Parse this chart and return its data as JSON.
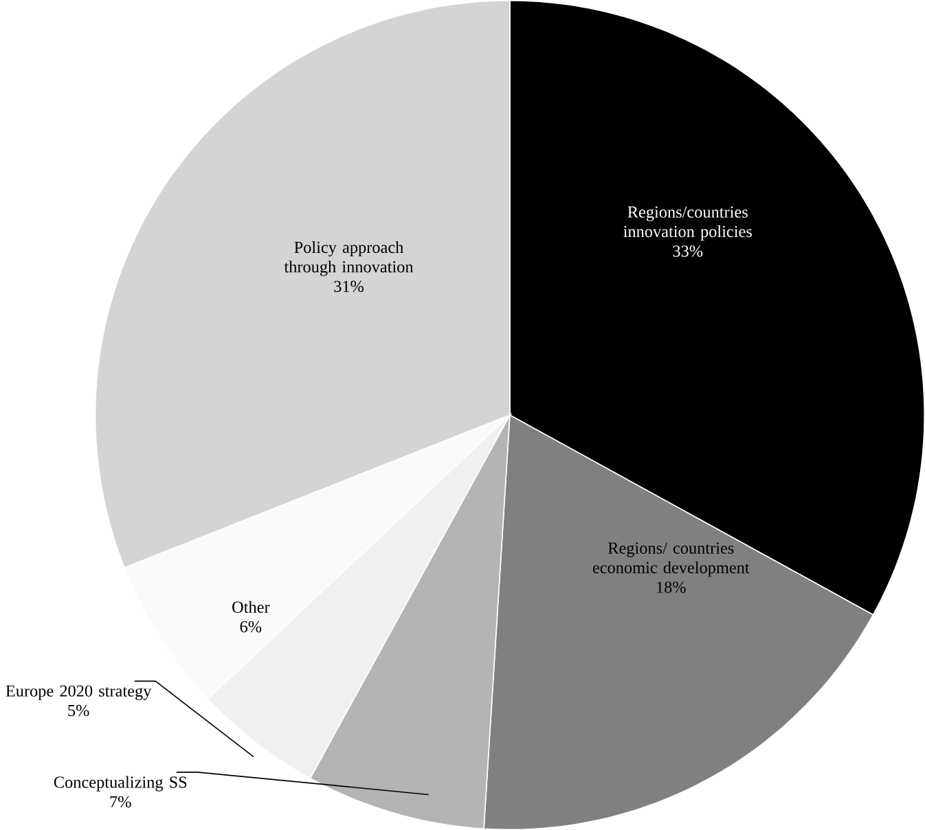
{
  "chart_data": {
    "type": "pie",
    "categories": [
      "Regions/countries innovation policies",
      "Regions/ countries economic development",
      "Conceptualizing SS",
      "Europe 2020 strategy",
      "Other",
      "Policy approach through innovation"
    ],
    "values": [
      33,
      18,
      7,
      5,
      6,
      31
    ],
    "value_labels": [
      "33%",
      "18%",
      "7%",
      "5%",
      "6%",
      "31%"
    ],
    "colors": [
      "#000000",
      "#808080",
      "#b4b4b4",
      "#f0f0f0",
      "#fafafa",
      "#d4d4d4"
    ]
  }
}
